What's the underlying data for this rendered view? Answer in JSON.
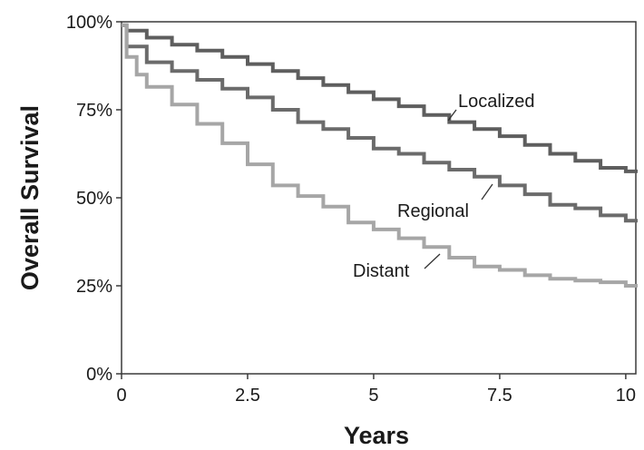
{
  "chart_data": {
    "type": "line",
    "title": "",
    "xlabel": "Years",
    "ylabel": "Overall Survival",
    "xlim": [
      0,
      10.2
    ],
    "ylim": [
      0,
      100
    ],
    "x_ticks": [
      0,
      2.5,
      5,
      7.5,
      10
    ],
    "x_tick_labels": [
      "0",
      "2.5",
      "5",
      "7.5",
      "10"
    ],
    "y_ticks": [
      0,
      25,
      50,
      75,
      100
    ],
    "y_tick_labels": [
      "0%",
      "25%",
      "50%",
      "75%",
      "100%"
    ],
    "grid": false,
    "legend": "none (direct labels)",
    "step": true,
    "series": [
      {
        "name": "Localized",
        "color": "#5e5e5e",
        "x": [
          0,
          0.1,
          0.5,
          1,
          1.5,
          2,
          2.5,
          3,
          3.5,
          4,
          4.5,
          5,
          5.5,
          6,
          6.5,
          7,
          7.5,
          8,
          8.5,
          9,
          9.5,
          10,
          10.2
        ],
        "y": [
          99,
          97.5,
          95.5,
          93.5,
          91.8,
          90,
          88,
          86,
          84,
          82,
          80,
          78,
          76,
          73.5,
          71.5,
          69.5,
          67.5,
          65,
          62.5,
          60.5,
          58.5,
          57.5,
          57
        ]
      },
      {
        "name": "Regional",
        "color": "#6b6b6b",
        "x": [
          0,
          0.1,
          0.5,
          1,
          1.5,
          2,
          2.5,
          3,
          3.5,
          4,
          4.5,
          5,
          5.5,
          6,
          6.5,
          7,
          7.5,
          8,
          8.5,
          9,
          9.5,
          10,
          10.2
        ],
        "y": [
          99,
          93,
          88.5,
          86,
          83.5,
          81,
          78.5,
          75,
          71.5,
          69.5,
          67,
          64,
          62.5,
          60,
          58,
          56,
          53.5,
          51,
          48,
          47,
          45,
          43.5,
          43
        ]
      },
      {
        "name": "Distant",
        "color": "#a6a6a6",
        "x": [
          0,
          0.1,
          0.3,
          0.5,
          1,
          1.5,
          2,
          2.5,
          3,
          3.5,
          4,
          4.5,
          5,
          5.5,
          6,
          6.5,
          7,
          7.5,
          8,
          8.5,
          9,
          9.5,
          10,
          10.2
        ],
        "y": [
          99,
          90,
          85,
          81.5,
          76.5,
          71,
          65.5,
          59.5,
          53.5,
          50.5,
          47.5,
          43,
          41,
          38.5,
          36,
          33,
          30.5,
          29.5,
          28,
          27,
          26.5,
          26,
          25,
          24.5
        ]
      }
    ]
  }
}
